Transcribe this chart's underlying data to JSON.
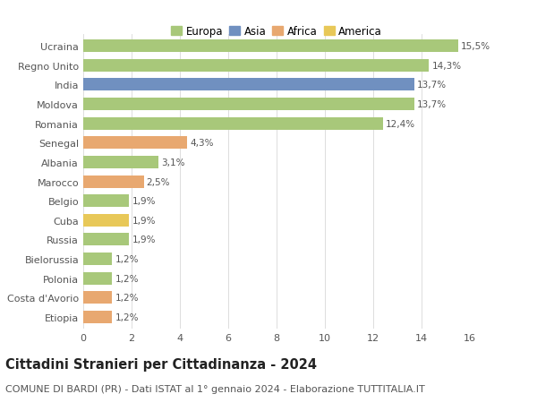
{
  "categories": [
    "Ucraina",
    "Regno Unito",
    "India",
    "Moldova",
    "Romania",
    "Senegal",
    "Albania",
    "Marocco",
    "Belgio",
    "Cuba",
    "Russia",
    "Bielorussia",
    "Polonia",
    "Costa d'Avorio",
    "Etiopia"
  ],
  "values": [
    15.5,
    14.3,
    13.7,
    13.7,
    12.4,
    4.3,
    3.1,
    2.5,
    1.9,
    1.9,
    1.9,
    1.2,
    1.2,
    1.2,
    1.2
  ],
  "labels": [
    "15,5%",
    "14,3%",
    "13,7%",
    "13,7%",
    "12,4%",
    "4,3%",
    "3,1%",
    "2,5%",
    "1,9%",
    "1,9%",
    "1,9%",
    "1,2%",
    "1,2%",
    "1,2%",
    "1,2%"
  ],
  "colors": [
    "#a8c87a",
    "#a8c87a",
    "#7090c0",
    "#a8c87a",
    "#a8c87a",
    "#e8a870",
    "#a8c87a",
    "#e8a870",
    "#a8c87a",
    "#e8c858",
    "#a8c87a",
    "#a8c87a",
    "#a8c87a",
    "#e8a870",
    "#e8a870"
  ],
  "legend_labels": [
    "Europa",
    "Asia",
    "Africa",
    "America"
  ],
  "legend_colors": [
    "#a8c87a",
    "#7090c0",
    "#e8a870",
    "#e8c858"
  ],
  "title": "Cittadini Stranieri per Cittadinanza - 2024",
  "subtitle": "COMUNE DI BARDI (PR) - Dati ISTAT al 1° gennaio 2024 - Elaborazione TUTTITALIA.IT",
  "xlim": [
    0,
    16
  ],
  "xticks": [
    0,
    2,
    4,
    6,
    8,
    10,
    12,
    14,
    16
  ],
  "background_color": "#ffffff",
  "grid_color": "#d8d8d8",
  "bar_height": 0.65,
  "title_fontsize": 10.5,
  "subtitle_fontsize": 8,
  "label_fontsize": 7.5,
  "tick_fontsize": 8,
  "legend_fontsize": 8.5
}
